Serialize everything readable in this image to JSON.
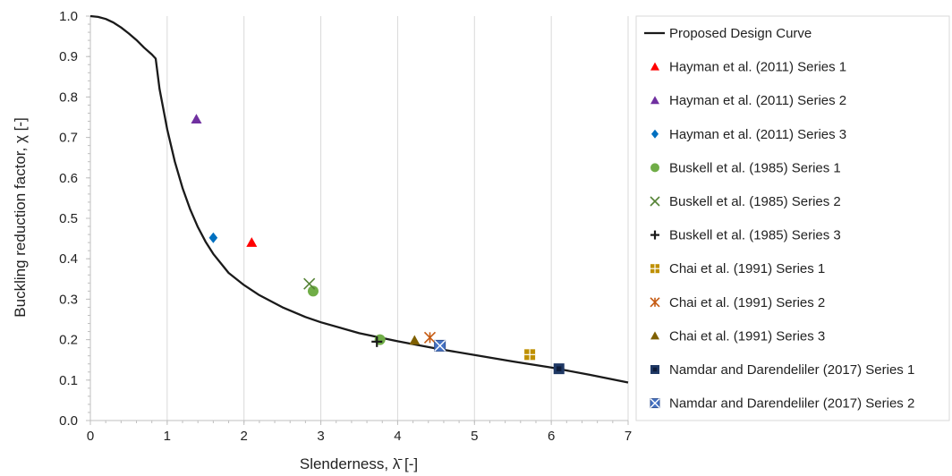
{
  "chart_data": {
    "type": "scatter",
    "xlabel": "Slenderness, λ̄ [-]",
    "ylabel": "Buckling reduction factor, χ [-]",
    "xlim": [
      0,
      7
    ],
    "ylim": [
      0,
      1.0
    ],
    "xticks": [
      "0",
      "1",
      "2",
      "3",
      "4",
      "5",
      "6",
      "7"
    ],
    "yticks": [
      "0.0",
      "0.1",
      "0.2",
      "0.3",
      "0.4",
      "0.5",
      "0.6",
      "0.7",
      "0.8",
      "0.9",
      "1.0"
    ],
    "grid": "vertical",
    "legend_position": "right",
    "curve": {
      "name": "Proposed Design Curve",
      "color": "#1a1a1a",
      "x": [
        0,
        0.1,
        0.2,
        0.3,
        0.4,
        0.5,
        0.6,
        0.7,
        0.8,
        0.85,
        0.9,
        0.95,
        1.0,
        1.1,
        1.2,
        1.3,
        1.4,
        1.5,
        1.6,
        1.8,
        2.0,
        2.2,
        2.5,
        2.8,
        3.0,
        3.5,
        4.0,
        4.5,
        5.0,
        5.5,
        6.0,
        6.5,
        7.0
      ],
      "y": [
        1.0,
        0.998,
        0.993,
        0.984,
        0.972,
        0.957,
        0.941,
        0.922,
        0.905,
        0.895,
        0.82,
        0.77,
        0.72,
        0.64,
        0.575,
        0.522,
        0.478,
        0.442,
        0.412,
        0.365,
        0.335,
        0.31,
        0.28,
        0.256,
        0.243,
        0.216,
        0.196,
        0.178,
        0.162,
        0.146,
        0.131,
        0.113,
        0.094
      ]
    },
    "series": [
      {
        "name": "Hayman et al. (2011) Series 1",
        "marker": "triangle",
        "color": "#ff0000",
        "points": [
          [
            2.1,
            0.44
          ]
        ]
      },
      {
        "name": "Hayman et al. (2011) Series 2",
        "marker": "triangle",
        "color": "#7030a0",
        "points": [
          [
            1.38,
            0.745
          ]
        ]
      },
      {
        "name": "Hayman et al. (2011) Series 3",
        "marker": "diamond",
        "color": "#0070c0",
        "points": [
          [
            1.6,
            0.452
          ]
        ]
      },
      {
        "name": "Buskell et al. (1985) Series 1",
        "marker": "circle",
        "color": "#70ad47",
        "points": [
          [
            2.9,
            0.32
          ],
          [
            3.77,
            0.2
          ]
        ]
      },
      {
        "name": "Buskell et al. (1985) Series 2",
        "marker": "x",
        "color": "#548235",
        "points": [
          [
            2.85,
            0.338
          ]
        ]
      },
      {
        "name": "Buskell et al. (1985) Series 3",
        "marker": "plus",
        "color": "#1a1a1a",
        "points": [
          [
            3.73,
            0.195
          ]
        ]
      },
      {
        "name": "Chai et al. (1991) Series 1",
        "marker": "square-cross",
        "color": "#bf9000",
        "points": [
          [
            5.72,
            0.163
          ]
        ]
      },
      {
        "name": "Chai et al. (1991) Series 2",
        "marker": "asterisk",
        "color": "#c55a11",
        "points": [
          [
            4.42,
            0.205
          ]
        ]
      },
      {
        "name": "Chai et al. (1991) Series 3",
        "marker": "triangle",
        "color": "#7f6000",
        "points": [
          [
            4.22,
            0.198
          ]
        ]
      },
      {
        "name": "Namdar and Darendeliler (2017) Series 1",
        "marker": "square",
        "color": "#1f3864",
        "points": [
          [
            6.1,
            0.128
          ]
        ]
      },
      {
        "name": "Namdar and Darendeliler (2017) Series 2",
        "marker": "square-x",
        "color": "#4472c4",
        "points": [
          [
            4.55,
            0.185
          ]
        ]
      }
    ]
  }
}
